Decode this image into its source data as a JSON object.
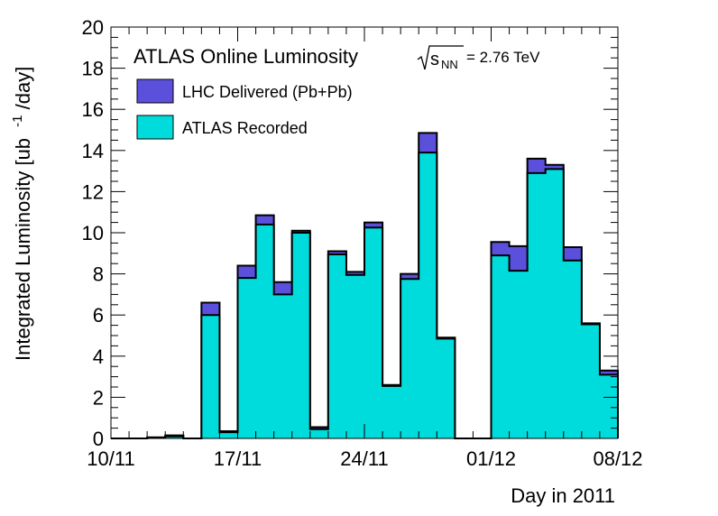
{
  "chart_data": {
    "type": "bar",
    "histogram": true,
    "stacked": "overlay",
    "title": "ATLAS Online Luminosity",
    "energy_label": {
      "prefix": "= 2.76 TeV",
      "symbol": "s",
      "subscript": "NN"
    },
    "xlabel": "Day in 2011",
    "ylabel": {
      "main": "Integrated Luminosity [ub",
      "sup": "-1",
      "tail": "/day]"
    },
    "ylim": [
      0,
      20
    ],
    "y_major_ticks": [
      0,
      2,
      4,
      6,
      8,
      10,
      12,
      14,
      16,
      18,
      20
    ],
    "x_ticks": [
      "10/11",
      "17/11",
      "24/11",
      "01/12",
      "08/12"
    ],
    "grid": false,
    "legend_position": "top-left",
    "categories": [
      "10/11",
      "11/11",
      "12/11",
      "13/11",
      "14/11",
      "15/11",
      "16/11",
      "17/11",
      "18/11",
      "19/11",
      "20/11",
      "21/11",
      "22/11",
      "23/11",
      "24/11",
      "25/11",
      "26/11",
      "27/11",
      "28/11",
      "29/11",
      "30/11",
      "01/12",
      "02/12",
      "03/12",
      "04/12",
      "05/12",
      "06/12",
      "07/12",
      "08/12"
    ],
    "series": [
      {
        "name": "LHC Delivered (Pb+Pb)",
        "color": "#5b50dc",
        "values": [
          0,
          0,
          0.05,
          0.15,
          0,
          6.6,
          0.35,
          8.4,
          10.85,
          7.6,
          10.1,
          0.55,
          9.1,
          8.1,
          10.5,
          2.6,
          8.0,
          14.85,
          4.9,
          0,
          0,
          9.55,
          9.35,
          13.6,
          13.3,
          9.3,
          5.6,
          3.3,
          3.3
        ]
      },
      {
        "name": "ATLAS Recorded",
        "color": "#00dcdc",
        "values": [
          0,
          0,
          0.05,
          0.1,
          0,
          6.0,
          0.3,
          7.8,
          10.4,
          7.0,
          10.0,
          0.45,
          8.95,
          7.95,
          10.25,
          2.55,
          7.75,
          13.9,
          4.85,
          0,
          0,
          8.9,
          8.15,
          12.9,
          13.1,
          8.65,
          5.55,
          3.1,
          3.1
        ]
      }
    ]
  }
}
